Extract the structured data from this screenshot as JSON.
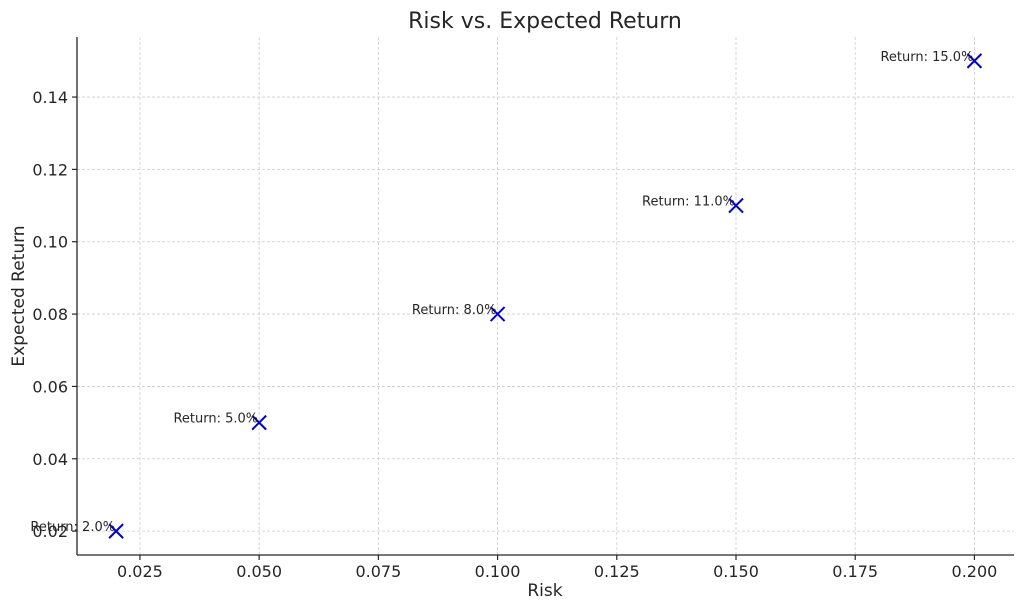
{
  "chart_data": {
    "type": "scatter",
    "title": "Risk vs. Expected Return",
    "xlabel": "Risk",
    "ylabel": "Expected Return",
    "xlim": [
      0.0118,
      0.2083
    ],
    "ylim": [
      0.0134,
      0.1566
    ],
    "xticks": [
      0.025,
      0.05,
      0.075,
      0.1,
      0.125,
      0.15,
      0.175,
      0.2
    ],
    "xtick_labels": [
      "0.025",
      "0.050",
      "0.075",
      "0.100",
      "0.125",
      "0.150",
      "0.175",
      "0.200"
    ],
    "yticks": [
      0.02,
      0.04,
      0.06,
      0.08,
      0.1,
      0.12,
      0.14
    ],
    "ytick_labels": [
      "0.02",
      "0.04",
      "0.06",
      "0.08",
      "0.10",
      "0.12",
      "0.14"
    ],
    "grid": true,
    "marker": "x",
    "color": "#0000cc",
    "points": [
      {
        "x": 0.02,
        "y": 0.02,
        "label": "Return: 2.0%"
      },
      {
        "x": 0.05,
        "y": 0.05,
        "label": "Return: 5.0%"
      },
      {
        "x": 0.1,
        "y": 0.08,
        "label": "Return: 8.0%"
      },
      {
        "x": 0.15,
        "y": 0.11,
        "label": "Return: 11.0%"
      },
      {
        "x": 0.2,
        "y": 0.15,
        "label": "Return: 15.0%"
      }
    ]
  }
}
